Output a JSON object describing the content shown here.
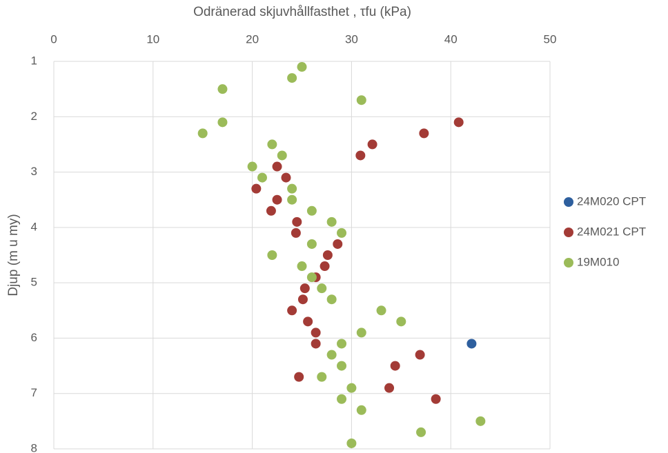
{
  "chart_data": {
    "type": "scatter",
    "title": "Odränerad skjuvhållfasthet , τfu (kPa)",
    "ylabel": "Djup (m u my)",
    "xlim": [
      0,
      50
    ],
    "xticks": [
      0,
      10,
      20,
      30,
      40,
      50
    ],
    "ylim": [
      1,
      8
    ],
    "yticks": [
      1,
      2,
      3,
      4,
      5,
      6,
      7,
      8
    ],
    "y_inverted": true,
    "x_axis_position": "top",
    "grid": true,
    "legend": "right",
    "series": [
      {
        "name": "24M020 CPT",
        "color": "#2e5f9e",
        "x": [
          42.1
        ],
        "values": [
          6.1
        ]
      },
      {
        "name": "24M021 CPT",
        "color": "#a33b36",
        "x": [
          40.8,
          37.3,
          32.1,
          30.9,
          22.5,
          23.4,
          20.4,
          22.5,
          21.9,
          24.5,
          24.4,
          28.6,
          27.6,
          27.3,
          26.4,
          25.3,
          25.1,
          24.0,
          25.6,
          26.4,
          26.4,
          36.9,
          34.4,
          24.7,
          33.8,
          38.5
        ],
        "values": [
          2.1,
          2.3,
          2.5,
          2.7,
          2.9,
          3.1,
          3.3,
          3.5,
          3.7,
          3.9,
          4.1,
          4.3,
          4.5,
          4.7,
          4.9,
          5.1,
          5.3,
          5.5,
          5.7,
          5.9,
          6.1,
          6.3,
          6.5,
          6.7,
          6.9,
          7.1
        ]
      },
      {
        "name": "19M010",
        "color": "#9bbb59",
        "x": [
          25,
          24,
          17,
          31,
          17,
          15,
          22,
          23,
          20,
          21,
          24,
          24,
          26,
          28,
          29,
          26,
          22,
          25,
          26,
          27,
          28,
          33,
          35,
          31,
          29,
          28,
          29,
          27,
          30,
          29,
          31,
          43,
          37,
          30
        ],
        "values": [
          1.1,
          1.3,
          1.5,
          1.7,
          2.1,
          2.3,
          2.5,
          2.7,
          2.9,
          3.1,
          3.3,
          3.5,
          3.7,
          3.9,
          4.1,
          4.3,
          4.5,
          4.7,
          4.9,
          5.1,
          5.3,
          5.5,
          5.7,
          5.9,
          6.1,
          6.3,
          6.5,
          6.7,
          6.9,
          7.1,
          7.3,
          7.5,
          7.7,
          7.9
        ]
      }
    ]
  }
}
